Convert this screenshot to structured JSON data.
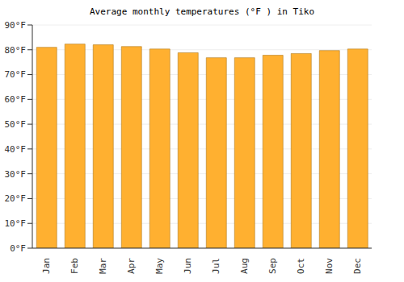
{
  "chart_data": {
    "type": "bar",
    "title": "Average monthly temperatures (°F ) in Tiko",
    "categories": [
      "Jan",
      "Feb",
      "Mar",
      "Apr",
      "May",
      "Jun",
      "Jul",
      "Aug",
      "Sep",
      "Oct",
      "Nov",
      "Dec"
    ],
    "values": [
      81,
      82.3,
      82,
      81.3,
      80.3,
      78.8,
      76.8,
      76.8,
      77.8,
      78.5,
      79.7,
      80.3
    ],
    "color": "#ffb030",
    "ylim": [
      0,
      90
    ],
    "yticks": [
      {
        "value": 0,
        "label": "0°F"
      },
      {
        "value": 10,
        "label": "10°F"
      },
      {
        "value": 20,
        "label": "20°F"
      },
      {
        "value": 30,
        "label": "30°F"
      },
      {
        "value": 40,
        "label": "40°F"
      },
      {
        "value": 50,
        "label": "50°F"
      },
      {
        "value": 60,
        "label": "60°F"
      },
      {
        "value": 70,
        "label": "70°F"
      },
      {
        "value": 80,
        "label": "80°F"
      },
      {
        "value": 90,
        "label": "90°F"
      }
    ],
    "grid": true
  }
}
